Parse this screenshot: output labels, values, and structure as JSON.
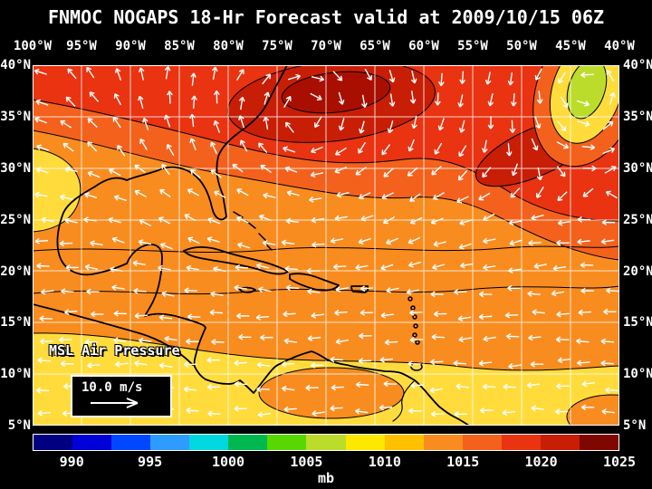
{
  "title": "FNMOC NOGAPS 18-Hr Forecast valid at 2009/10/15 06Z",
  "axes": {
    "lon_labels": [
      "100°W",
      "95°W",
      "90°W",
      "85°W",
      "80°W",
      "75°W",
      "70°W",
      "65°W",
      "60°W",
      "55°W",
      "50°W",
      "45°W",
      "40°W"
    ],
    "lat_labels": [
      "40°N",
      "35°N",
      "30°N",
      "25°N",
      "20°N",
      "15°N",
      "10°N",
      "5°N"
    ]
  },
  "map": {
    "field_label": "MSL Air Pressure",
    "wind_scale_label": "10.0 m/s"
  },
  "palette": {
    "base_orange": "#F98C1F",
    "deep_orange": "#F4611C",
    "red": "#E93311",
    "dark_red": "#C81E06",
    "darker_red": "#A80F00",
    "yellow": "#FFDC3C",
    "green": "#BCDC2C",
    "arrow_white": "#FFFFFF",
    "coast_black": "#000000"
  },
  "colorbar": {
    "unit": "mb",
    "tick_labels": [
      "990",
      "995",
      "1000",
      "1005",
      "1010",
      "1015",
      "1020",
      "1025"
    ],
    "colors": [
      "#000080",
      "#0000D8",
      "#0048FF",
      "#2E9CFF",
      "#00D8E0",
      "#00B850",
      "#58D800",
      "#BCDC2C",
      "#FFE800",
      "#FFC000",
      "#F98C1F",
      "#F4611C",
      "#E93311",
      "#C81E06",
      "#7E0800"
    ]
  },
  "chart_data": {
    "type": "heatmap",
    "field": "MSL Air Pressure",
    "unit": "mb",
    "scale_ticks": [
      990,
      995,
      1000,
      1005,
      1010,
      1015,
      1020,
      1025
    ],
    "lon_range": [
      "100°W",
      "40°W"
    ],
    "lat_range": [
      "5°N",
      "40°N"
    ],
    "wind_vector_scale_label": "10.0 m/s"
  }
}
